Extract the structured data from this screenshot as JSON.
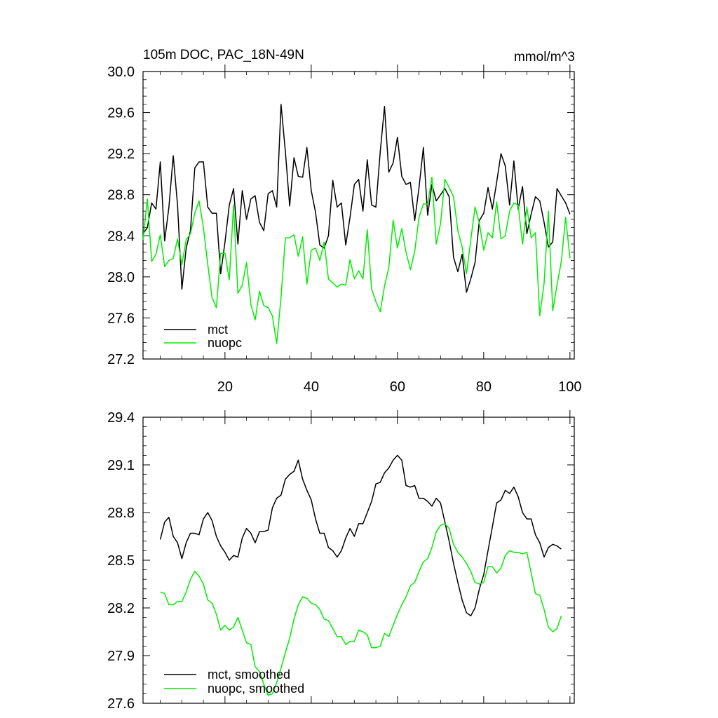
{
  "chart_data": [
    {
      "type": "line",
      "title": "105m DOC, PAC_18N-49N",
      "units": "mmol/m^3",
      "xlabel": "",
      "ylabel": "",
      "xlim": [
        1,
        101
      ],
      "ylim": [
        27.2,
        30.0
      ],
      "x_ticks": [
        20,
        40,
        60,
        80,
        100
      ],
      "y_ticks": [
        27.2,
        27.6,
        28.0,
        28.4,
        28.8,
        29.2,
        29.6,
        30.0
      ],
      "y_tick_labels": [
        "27.2",
        "27.6",
        "28.0",
        "28.4",
        "28.8",
        "29.2",
        "29.6",
        "30.0"
      ],
      "x_tick_labels": [
        "20",
        "40",
        "60",
        "80",
        "100"
      ],
      "grid": false,
      "legend_position": "bottom-left",
      "x_start": 1,
      "series": [
        {
          "name": "mct",
          "color": "#000000",
          "values": [
            28.42,
            28.48,
            28.72,
            28.66,
            29.12,
            28.35,
            28.68,
            29.18,
            28.7,
            27.88,
            28.28,
            28.45,
            29.06,
            29.12,
            29.12,
            28.68,
            28.62,
            28.62,
            28.03,
            28.34,
            28.7,
            28.86,
            28.32,
            28.84,
            28.56,
            28.76,
            28.79,
            28.53,
            28.45,
            28.81,
            28.84,
            28.68,
            29.68,
            29.22,
            28.69,
            29.16,
            28.98,
            28.97,
            29.26,
            28.84,
            28.63,
            28.31,
            28.28,
            28.4,
            28.94,
            28.68,
            28.72,
            28.31,
            28.58,
            28.9,
            28.95,
            28.64,
            29.14,
            28.7,
            28.68,
            29.22,
            29.66,
            29.02,
            29.11,
            29.36,
            28.98,
            28.9,
            28.92,
            28.55,
            28.87,
            29.26,
            28.6,
            28.9,
            28.74,
            28.8,
            28.86,
            28.78,
            28.19,
            28.05,
            28.22,
            27.85,
            27.98,
            28.14,
            28.55,
            28.62,
            28.87,
            28.66,
            28.92,
            29.2,
            29.08,
            28.7,
            29.13,
            28.66,
            28.88,
            28.42,
            28.61,
            28.78,
            28.74,
            28.53,
            28.29,
            28.34,
            28.86,
            28.79,
            28.72,
            28.61
          ]
        },
        {
          "name": "nuopc",
          "color": "#00ee00",
          "values": [
            28.36,
            28.76,
            28.15,
            28.22,
            28.41,
            28.1,
            28.16,
            28.18,
            28.37,
            28.12,
            28.36,
            28.42,
            28.62,
            28.74,
            28.48,
            28.12,
            27.8,
            27.7,
            28.23,
            28.23,
            27.97,
            28.7,
            27.84,
            27.92,
            28.14,
            27.73,
            27.58,
            27.86,
            27.72,
            27.7,
            27.62,
            27.35,
            27.8,
            28.38,
            28.38,
            28.41,
            28.2,
            28.39,
            27.93,
            28.26,
            28.28,
            28.16,
            28.34,
            27.98,
            27.94,
            27.9,
            27.93,
            27.92,
            28.17,
            27.98,
            28.06,
            27.98,
            28.46,
            27.88,
            27.76,
            27.66,
            27.91,
            28.09,
            28.55,
            28.28,
            28.47,
            28.24,
            28.07,
            28.25,
            28.58,
            28.71,
            28.71,
            28.97,
            28.32,
            28.52,
            28.95,
            28.87,
            28.78,
            28.45,
            28.29,
            28.03,
            28.36,
            28.68,
            28.52,
            28.26,
            28.43,
            28.38,
            28.73,
            28.37,
            28.4,
            28.64,
            28.72,
            28.7,
            28.32,
            28.68,
            28.38,
            28.43,
            27.62,
            27.94,
            28.64,
            27.67,
            27.92,
            28.15,
            28.58,
            28.18
          ]
        }
      ]
    },
    {
      "type": "line",
      "title": "",
      "xlabel": "",
      "ylabel": "",
      "xlim": [
        1,
        101
      ],
      "ylim": [
        27.6,
        29.4
      ],
      "x_ticks": [
        20,
        40,
        60,
        80,
        100
      ],
      "y_ticks": [
        27.6,
        27.9,
        28.2,
        28.5,
        28.8,
        29.1,
        29.4
      ],
      "y_tick_labels": [
        "27.6",
        "27.9",
        "28.2",
        "28.5",
        "28.8",
        "29.1",
        "29.4"
      ],
      "grid": false,
      "legend_position": "bottom-left",
      "x_start": 5,
      "series": [
        {
          "name": "mct, smoothed",
          "color": "#000000",
          "values": [
            28.63,
            28.74,
            28.77,
            28.65,
            28.61,
            28.51,
            28.61,
            28.67,
            28.67,
            28.66,
            28.76,
            28.8,
            28.75,
            28.65,
            28.59,
            28.55,
            28.5,
            28.53,
            28.52,
            28.64,
            28.7,
            28.67,
            28.61,
            28.68,
            28.68,
            28.69,
            28.83,
            28.89,
            28.91,
            29.01,
            29.04,
            29.06,
            29.13,
            29.01,
            28.94,
            28.88,
            28.76,
            28.67,
            28.67,
            28.58,
            28.56,
            28.52,
            28.56,
            28.64,
            28.7,
            28.65,
            28.73,
            28.73,
            28.8,
            28.87,
            28.98,
            28.99,
            29.05,
            29.08,
            29.13,
            29.16,
            29.13,
            28.97,
            28.96,
            28.97,
            28.89,
            28.89,
            28.87,
            28.84,
            28.89,
            28.86,
            28.74,
            28.62,
            28.48,
            28.36,
            28.25,
            28.17,
            28.15,
            28.2,
            28.32,
            28.41,
            28.56,
            28.71,
            28.86,
            28.88,
            28.94,
            28.92,
            28.96,
            28.9,
            28.8,
            28.76,
            28.76,
            28.66,
            28.61,
            28.52,
            28.58,
            28.6,
            28.59,
            28.57
          ]
        },
        {
          "name": "nuopc, smoothed",
          "color": "#00ee00",
          "values": [
            28.3,
            28.29,
            28.22,
            28.22,
            28.24,
            28.24,
            28.3,
            28.38,
            28.43,
            28.4,
            28.35,
            28.25,
            28.23,
            28.16,
            28.06,
            28.09,
            28.06,
            28.08,
            28.14,
            28.06,
            27.98,
            27.97,
            27.83,
            27.8,
            27.72,
            27.65,
            27.66,
            27.73,
            27.82,
            27.92,
            28.01,
            28.13,
            28.22,
            28.27,
            28.26,
            28.23,
            28.22,
            28.19,
            28.13,
            28.12,
            28.07,
            28.02,
            28.02,
            27.97,
            27.99,
            27.99,
            28.06,
            28.05,
            28.03,
            27.95,
            27.95,
            27.96,
            28.04,
            28.02,
            28.09,
            28.16,
            28.22,
            28.27,
            28.34,
            28.36,
            28.43,
            28.49,
            28.51,
            28.58,
            28.68,
            28.72,
            28.73,
            28.7,
            28.6,
            28.55,
            28.52,
            28.48,
            28.43,
            28.36,
            28.35,
            28.36,
            28.46,
            28.46,
            28.42,
            28.45,
            28.53,
            28.56,
            28.55,
            28.55,
            28.54,
            28.55,
            28.42,
            28.29,
            28.28,
            28.19,
            28.08,
            28.05,
            28.07,
            28.15
          ]
        }
      ]
    }
  ]
}
